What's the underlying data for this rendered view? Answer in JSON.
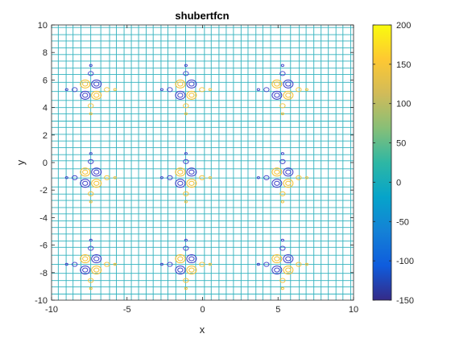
{
  "chart_data": {
    "type": "contour",
    "function": "shubertfcn",
    "title": "shubertfcn",
    "xlabel": "x",
    "ylabel": "y",
    "xlim": [
      -10,
      10
    ],
    "ylim": [
      -10,
      10
    ],
    "x_ticks": [
      -10,
      -5,
      0,
      5,
      10
    ],
    "y_ticks": [
      10,
      8,
      6,
      4,
      2,
      0,
      -2,
      -4,
      -6,
      -8,
      -10
    ],
    "colorbar": {
      "colormap": "parula",
      "range": [
        -150,
        200
      ],
      "ticks": [
        200,
        150,
        100,
        50,
        0,
        -50,
        -100,
        -150
      ]
    },
    "cluster_centers": {
      "x": [
        -7.4,
        -1.1,
        5.3
      ],
      "y": [
        5.3,
        -1.1,
        -7.4
      ]
    },
    "contour_level_colors": {
      "low": "#3e3ec8",
      "base": "#32b2be",
      "high": "#f5c030"
    }
  }
}
